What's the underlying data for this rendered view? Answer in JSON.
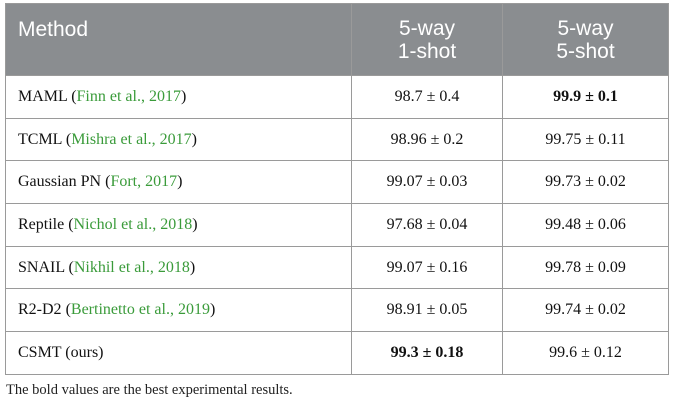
{
  "table": {
    "headers": {
      "method": "Method",
      "col1": [
        "5-way",
        "1-shot"
      ],
      "col2": [
        "5-way",
        "5-shot"
      ]
    },
    "rows": [
      {
        "method": "MAML",
        "cite": "Finn et al., 2017",
        "v1": "98.7 ± 0.4",
        "v2": "99.9 ± 0.1",
        "v1_best": false,
        "v2_best": true
      },
      {
        "method": "TCML",
        "cite": "Mishra et al., 2017",
        "v1": "98.96 ± 0.2",
        "v2": "99.75 ± 0.11",
        "v1_best": false,
        "v2_best": false
      },
      {
        "method": "Gaussian PN",
        "cite": "Fort, 2017",
        "v1": "99.07 ± 0.03",
        "v2": "99.73 ± 0.02",
        "v1_best": false,
        "v2_best": false
      },
      {
        "method": "Reptile",
        "cite": "Nichol et al., 2018",
        "v1": "97.68 ± 0.04",
        "v2": "99.48 ± 0.06",
        "v1_best": false,
        "v2_best": false
      },
      {
        "method": "SNAIL",
        "cite": "Nikhil et al., 2018",
        "v1": "99.07 ± 0.16",
        "v2": "99.78 ± 0.09",
        "v1_best": false,
        "v2_best": false
      },
      {
        "method": "R2-D2",
        "cite": "Bertinetto et al., 2019",
        "v1": "98.91 ± 0.05",
        "v2": "99.74 ± 0.02",
        "v1_best": false,
        "v2_best": false
      },
      {
        "method": "CSMT (ours)",
        "cite": "",
        "v1": "99.3 ± 0.18",
        "v2": "99.6 ± 0.12",
        "v1_best": true,
        "v2_best": false
      }
    ]
  },
  "footnote": "The bold values are the best experimental results.",
  "colors": {
    "header_bg": "#8a8d90",
    "header_text": "#ffffff",
    "citation": "#3a9b3a",
    "border": "#9a9a9a"
  }
}
